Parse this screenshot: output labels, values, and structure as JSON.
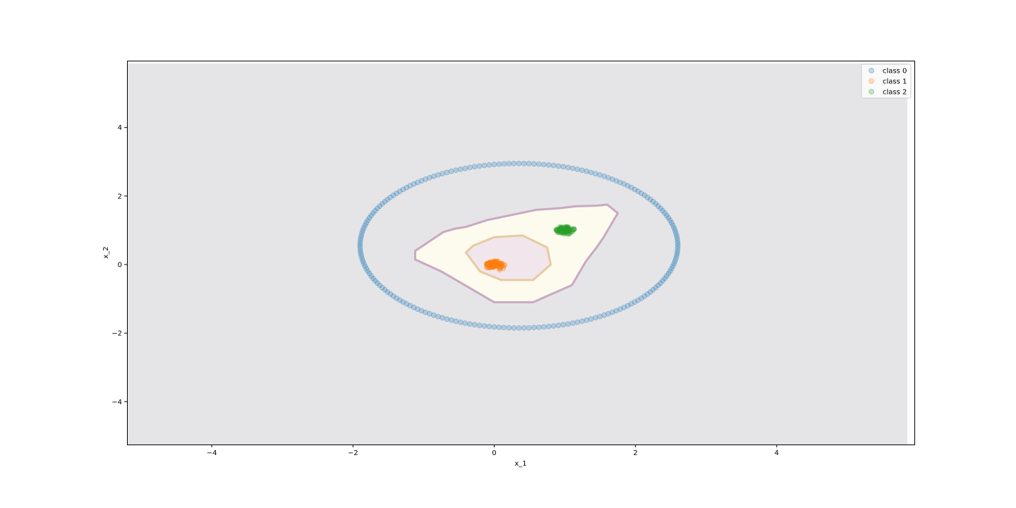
{
  "chart_data": {
    "type": "scatter",
    "title": "",
    "xlabel": "x_1",
    "ylabel": "x_2",
    "xlim": [
      -5.2,
      5.95
    ],
    "ylim": [
      -5.25,
      5.95
    ],
    "xticks": [
      -4,
      -2,
      0,
      2,
      4
    ],
    "yticks": [
      -4,
      -2,
      0,
      2,
      4
    ],
    "xtick_labels": [
      "−4",
      "−2",
      "0",
      "2",
      "4"
    ],
    "ytick_labels": [
      "−4",
      "−2",
      "0",
      "2",
      "4"
    ],
    "grid": false,
    "legend_position": "top-right",
    "background_region_color": "#e5e5e8",
    "series": [
      {
        "name": "class 0",
        "color": "#1f77b4",
        "alpha": 0.25,
        "shape": "ellipse",
        "center": [
          0.35,
          0.55
        ],
        "radius": [
          2.25,
          2.4
        ],
        "count": 200
      },
      {
        "name": "class 1",
        "color": "#ff7f0e",
        "alpha": 0.3,
        "shape": "cluster",
        "center": [
          0.0,
          0.0
        ],
        "spread": [
          0.08,
          0.06
        ],
        "count": 100
      },
      {
        "name": "class 2",
        "color": "#2ca02c",
        "alpha": 0.3,
        "shape": "cluster",
        "center": [
          1.0,
          1.0
        ],
        "spread": [
          0.08,
          0.06
        ],
        "count": 100
      }
    ],
    "decision_regions": [
      {
        "label": "outer",
        "fill": "#fdfbee",
        "stroke": "#c9a9c0",
        "polygon": [
          [
            -1.12,
            0.4
          ],
          [
            -0.72,
            0.95
          ],
          [
            -0.55,
            1.05
          ],
          [
            -0.4,
            1.1
          ],
          [
            -0.1,
            1.3
          ],
          [
            0.6,
            1.6
          ],
          [
            0.95,
            1.65
          ],
          [
            1.15,
            1.7
          ],
          [
            1.45,
            1.72
          ],
          [
            1.6,
            1.75
          ],
          [
            1.75,
            1.5
          ],
          [
            1.55,
            0.8
          ],
          [
            1.45,
            0.5
          ],
          [
            1.3,
            0.1
          ],
          [
            1.2,
            -0.25
          ],
          [
            1.1,
            -0.6
          ],
          [
            0.55,
            -1.1
          ],
          [
            0.0,
            -1.1
          ],
          [
            -0.75,
            -0.2
          ],
          [
            -1.12,
            0.15
          ]
        ]
      },
      {
        "label": "inner",
        "fill": "#f1e6ec",
        "stroke": "#e8c9a0",
        "polygon": [
          [
            -0.4,
            0.35
          ],
          [
            -0.3,
            0.55
          ],
          [
            0.0,
            0.8
          ],
          [
            0.4,
            0.85
          ],
          [
            0.75,
            0.5
          ],
          [
            0.8,
            0.0
          ],
          [
            0.55,
            -0.45
          ],
          [
            0.1,
            -0.45
          ],
          [
            -0.2,
            -0.2
          ]
        ]
      }
    ]
  }
}
